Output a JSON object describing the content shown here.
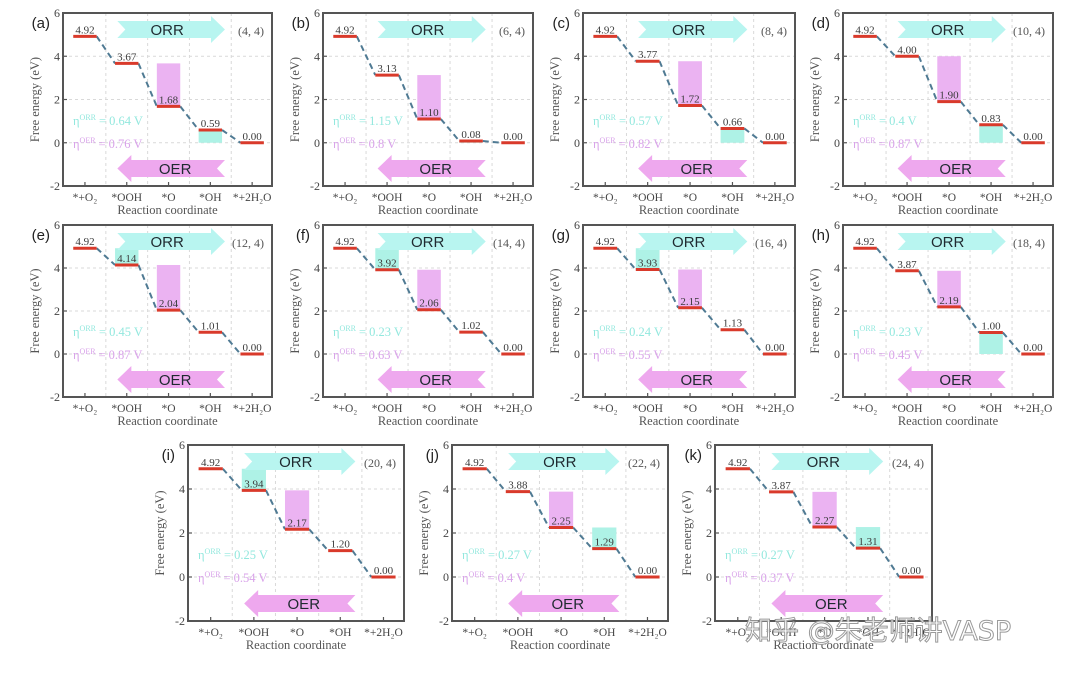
{
  "labels": {
    "eta_symbol": "η",
    "equals": "="
  },
  "watermark": "知乎 @朱老师讲VASP",
  "colors": {
    "level": "#d93a2b",
    "connector": "#4f7a93",
    "orr": "#aef2e6",
    "oer": "#ebb3f2"
  },
  "chart_data": [
    {
      "type": "line",
      "panel": "(a)",
      "title": "(4, 4)",
      "categories": [
        "*+O₂",
        "*OOH",
        "*O",
        "*OH",
        "*+2H₂O"
      ],
      "values": [
        4.92,
        3.67,
        1.68,
        0.59,
        0.0
      ],
      "value_labels": [
        "4.92",
        "3.67",
        "1.68",
        "0.59",
        "0.00"
      ],
      "xlabel": "Reaction coordinate",
      "ylabel": "Free energy (eV)",
      "ylim": [
        -2,
        6
      ],
      "yticks": [
        -2,
        0,
        2,
        4,
        6
      ],
      "grid": true,
      "eta_orr": "0.64 V",
      "eta_oer": "0.76 V",
      "orr_box": {
        "category": 3,
        "from": 0,
        "to": 0.59
      },
      "oer_box": {
        "category": 2,
        "from": 1.68,
        "to": 3.67
      },
      "arrows": [
        {
          "label": "ORR",
          "direction": "right"
        },
        {
          "label": "OER",
          "direction": "left"
        }
      ],
      "eta_orr_label": "ORR",
      "eta_oer_label": "OER"
    },
    {
      "type": "line",
      "panel": "(b)",
      "title": "(6, 4)",
      "categories": [
        "*+O₂",
        "*OOH",
        "*O",
        "*OH",
        "*+2H₂O"
      ],
      "values": [
        4.92,
        3.13,
        1.1,
        0.08,
        0.0
      ],
      "value_labels": [
        "4.92",
        "3.13",
        "1.10",
        "0.08",
        "0.00"
      ],
      "xlabel": "Reaction coordinate",
      "ylabel": "Free energy (eV)",
      "ylim": [
        -2,
        6
      ],
      "yticks": [
        -2,
        0,
        2,
        4,
        6
      ],
      "grid": true,
      "eta_orr": "1.15 V",
      "eta_oer": "0.8 V",
      "orr_box": {
        "category": 3,
        "from": 0,
        "to": 0.08
      },
      "oer_box": {
        "category": 2,
        "from": 1.1,
        "to": 3.13
      },
      "arrows": [
        {
          "label": "ORR",
          "direction": "right"
        },
        {
          "label": "OER",
          "direction": "left"
        }
      ],
      "eta_orr_label": "ORR",
      "eta_oer_label": "OER"
    },
    {
      "type": "line",
      "panel": "(c)",
      "title": "(8, 4)",
      "categories": [
        "*+O₂",
        "*OOH",
        "*O",
        "*OH",
        "*+2H₂O"
      ],
      "values": [
        4.92,
        3.77,
        1.72,
        0.66,
        0.0
      ],
      "value_labels": [
        "4.92",
        "3.77",
        "1.72",
        "0.66",
        "0.00"
      ],
      "xlabel": "Reaction coordinate",
      "ylabel": "Free energy (eV)",
      "ylim": [
        -2,
        6
      ],
      "yticks": [
        -2,
        0,
        2,
        4,
        6
      ],
      "grid": true,
      "eta_orr": "0.57 V",
      "eta_oer": "0.82 V",
      "orr_box": {
        "category": 3,
        "from": 0,
        "to": 0.66
      },
      "oer_box": {
        "category": 2,
        "from": 1.72,
        "to": 3.77
      },
      "arrows": [
        {
          "label": "ORR",
          "direction": "right"
        },
        {
          "label": "OER",
          "direction": "left"
        }
      ],
      "eta_orr_label": "ORR",
      "eta_oer_label": "OER"
    },
    {
      "type": "line",
      "panel": "(d)",
      "title": "(10, 4)",
      "categories": [
        "*+O₂",
        "*OOH",
        "*O",
        "*OH",
        "*+2H₂O"
      ],
      "values": [
        4.92,
        4.0,
        1.9,
        0.83,
        0.0
      ],
      "value_labels": [
        "4.92",
        "4.00",
        "1.90",
        "0.83",
        "0.00"
      ],
      "xlabel": "Reaction coordinate",
      "ylabel": "Free energy (eV)",
      "ylim": [
        -2,
        6
      ],
      "yticks": [
        -2,
        0,
        2,
        4,
        6
      ],
      "grid": true,
      "eta_orr": "0.4 V",
      "eta_oer": "0.87 V",
      "orr_box": {
        "category": 3,
        "from": 0,
        "to": 0.83
      },
      "oer_box": {
        "category": 2,
        "from": 1.9,
        "to": 4.0
      },
      "arrows": [
        {
          "label": "ORR",
          "direction": "right"
        },
        {
          "label": "OER",
          "direction": "left"
        }
      ],
      "eta_orr_label": "ORR",
      "eta_oer_label": "OER"
    },
    {
      "type": "line",
      "panel": "(e)",
      "title": "(12, 4)",
      "categories": [
        "*+O₂",
        "*OOH",
        "*O",
        "*OH",
        "*+2H₂O"
      ],
      "values": [
        4.92,
        4.14,
        2.04,
        1.01,
        0.0
      ],
      "value_labels": [
        "4.92",
        "4.14",
        "2.04",
        "1.01",
        "0.00"
      ],
      "xlabel": "Reaction coordinate",
      "ylabel": "Free energy (eV)",
      "ylim": [
        -2,
        6
      ],
      "yticks": [
        -2,
        0,
        2,
        4,
        6
      ],
      "grid": true,
      "eta_orr": "0.45 V",
      "eta_oer": "0.87 V",
      "orr_box": {
        "category": 1,
        "from": 4.14,
        "to": 4.92
      },
      "oer_box": {
        "category": 2,
        "from": 2.04,
        "to": 4.14
      },
      "arrows": [
        {
          "label": "ORR",
          "direction": "right"
        },
        {
          "label": "OER",
          "direction": "left"
        }
      ],
      "eta_orr_label": "ORR",
      "eta_oer_label": "OER"
    },
    {
      "type": "line",
      "panel": "(f)",
      "title": "(14, 4)",
      "categories": [
        "*+O₂",
        "*OOH",
        "*O",
        "*OH",
        "*+2H₂O"
      ],
      "values": [
        4.92,
        3.92,
        2.06,
        1.02,
        0.0
      ],
      "value_labels": [
        "4.92",
        "3.92",
        "2.06",
        "1.02",
        "0.00"
      ],
      "xlabel": "Reaction coordinate",
      "ylabel": "Free energy (eV)",
      "ylim": [
        -2,
        6
      ],
      "yticks": [
        -2,
        0,
        2,
        4,
        6
      ],
      "grid": true,
      "eta_orr": "0.23 V",
      "eta_oer": "0.63 V",
      "orr_box": {
        "category": 1,
        "from": 3.92,
        "to": 4.92
      },
      "oer_box": {
        "category": 2,
        "from": 2.06,
        "to": 3.92
      },
      "arrows": [
        {
          "label": "ORR",
          "direction": "right"
        },
        {
          "label": "OER",
          "direction": "left"
        }
      ],
      "eta_orr_label": "ORR",
      "eta_oer_label": "OER"
    },
    {
      "type": "line",
      "panel": "(g)",
      "title": "(16, 4)",
      "categories": [
        "*+O₂",
        "*OOH",
        "*O",
        "*OH",
        "*+2H₂O"
      ],
      "values": [
        4.92,
        3.93,
        2.15,
        1.13,
        0.0
      ],
      "value_labels": [
        "4.92",
        "3.93",
        "2.15",
        "1.13",
        "0.00"
      ],
      "xlabel": "Reaction coordinate",
      "ylabel": "Free energy (eV)",
      "ylim": [
        -2,
        6
      ],
      "yticks": [
        -2,
        0,
        2,
        4,
        6
      ],
      "grid": true,
      "eta_orr": "0.24 V",
      "eta_oer": "0.55 V",
      "orr_box": {
        "category": 1,
        "from": 3.93,
        "to": 4.92
      },
      "oer_box": {
        "category": 2,
        "from": 2.15,
        "to": 3.93
      },
      "arrows": [
        {
          "label": "ORR",
          "direction": "right"
        },
        {
          "label": "OER",
          "direction": "left"
        }
      ],
      "eta_orr_label": "ORR",
      "eta_oer_label": "OER"
    },
    {
      "type": "line",
      "panel": "(h)",
      "title": "(18, 4)",
      "categories": [
        "*+O₂",
        "*OOH",
        "*O",
        "*OH",
        "*+2H₂O"
      ],
      "values": [
        4.92,
        3.87,
        2.19,
        1.0,
        0.0
      ],
      "value_labels": [
        "4.92",
        "3.87",
        "2.19",
        "1.00",
        "0.00"
      ],
      "xlabel": "Reaction coordinate",
      "ylabel": "Free energy (eV)",
      "ylim": [
        -2,
        6
      ],
      "yticks": [
        -2,
        0,
        2,
        4,
        6
      ],
      "grid": true,
      "eta_orr": "0.23 V",
      "eta_oer": "0.45 V",
      "orr_box": {
        "category": 3,
        "from": 0,
        "to": 1.0
      },
      "oer_box": {
        "category": 2,
        "from": 2.19,
        "to": 3.87
      },
      "arrows": [
        {
          "label": "ORR",
          "direction": "right"
        },
        {
          "label": "OER",
          "direction": "left"
        }
      ],
      "eta_orr_label": "ORR",
      "eta_oer_label": "OER"
    },
    {
      "type": "line",
      "panel": "(i)",
      "title": "(20, 4)",
      "categories": [
        "*+O₂",
        "*OOH",
        "*O",
        "*OH",
        "*+2H₂O"
      ],
      "values": [
        4.92,
        3.94,
        2.17,
        1.2,
        0.0
      ],
      "value_labels": [
        "4.92",
        "3.94",
        "2.17",
        "1.20",
        "0.00"
      ],
      "xlabel": "Reaction coordinate",
      "ylabel": "Free energy (eV)",
      "ylim": [
        -2,
        6
      ],
      "yticks": [
        -2,
        0,
        2,
        4,
        6
      ],
      "grid": true,
      "eta_orr": "0.25 V",
      "eta_oer": "0.54 V",
      "orr_box": {
        "category": 1,
        "from": 3.94,
        "to": 4.92
      },
      "oer_box": {
        "category": 2,
        "from": 2.17,
        "to": 3.94
      },
      "arrows": [
        {
          "label": "ORR",
          "direction": "right"
        },
        {
          "label": "OER",
          "direction": "left"
        }
      ],
      "eta_orr_label": "ORR",
      "eta_oer_label": "OER"
    },
    {
      "type": "line",
      "panel": "(j)",
      "title": "(22, 4)",
      "categories": [
        "*+O₂",
        "*OOH",
        "*O",
        "*OH",
        "*+2H₂O"
      ],
      "values": [
        4.92,
        3.88,
        2.25,
        1.29,
        0.0
      ],
      "value_labels": [
        "4.92",
        "3.88",
        "2.25",
        "1.29",
        "0.00"
      ],
      "xlabel": "Reaction coordinate",
      "ylabel": "Free energy (eV)",
      "ylim": [
        -2,
        6
      ],
      "yticks": [
        -2,
        0,
        2,
        4,
        6
      ],
      "grid": true,
      "eta_orr": "0.27 V",
      "eta_oer": "0.4 V",
      "orr_box": {
        "category": 3,
        "from": 1.29,
        "to": 2.25
      },
      "oer_box": {
        "category": 2,
        "from": 2.25,
        "to": 3.88
      },
      "arrows": [
        {
          "label": "ORR",
          "direction": "right"
        },
        {
          "label": "OER",
          "direction": "left"
        }
      ],
      "eta_orr_label": "ORR",
      "eta_oer_label": "OER"
    },
    {
      "type": "line",
      "panel": "(k)",
      "title": "(24, 4)",
      "categories": [
        "*+O₂",
        "*OOH",
        "*O",
        "*OH",
        "*+2H₂O"
      ],
      "values": [
        4.92,
        3.87,
        2.27,
        1.31,
        0.0
      ],
      "value_labels": [
        "4.92",
        "3.87",
        "2.27",
        "1.31",
        "0.00"
      ],
      "xlabel": "Reaction coordinate",
      "ylabel": "Free energy (eV)",
      "ylim": [
        -2,
        6
      ],
      "yticks": [
        -2,
        0,
        2,
        4,
        6
      ],
      "grid": true,
      "eta_orr": "0.27 V",
      "eta_oer": "0.37 V",
      "orr_box": {
        "category": 3,
        "from": 1.31,
        "to": 2.27
      },
      "oer_box": {
        "category": 2,
        "from": 2.27,
        "to": 3.87
      },
      "arrows": [
        {
          "label": "ORR",
          "direction": "right"
        },
        {
          "label": "OER",
          "direction": "left"
        }
      ],
      "eta_orr_label": "ORR",
      "eta_oer_label": "OER"
    }
  ]
}
